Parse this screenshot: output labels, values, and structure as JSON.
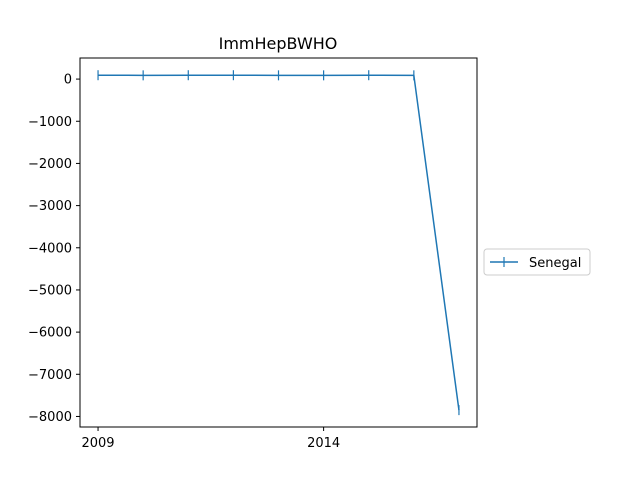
{
  "chart_data": {
    "type": "line",
    "title": "ImmHepBWHO",
    "xlabel": "",
    "ylabel": "",
    "x": [
      2009,
      2010,
      2011,
      2012,
      2013,
      2014,
      2015,
      2016,
      2017
    ],
    "series": [
      {
        "name": "Senegal",
        "values": [
          92,
          89,
          92,
          92,
          89,
          89,
          92,
          89,
          -7850
        ],
        "color": "#1f77b4",
        "marker": "|"
      }
    ],
    "xlim": [
      2008.6,
      2017.4
    ],
    "ylim": [
      -8250,
      500
    ],
    "x_ticks": [
      2009,
      2014
    ],
    "x_tick_labels": [
      "2009",
      "2014"
    ],
    "y_ticks": [
      0,
      -1000,
      -2000,
      -3000,
      -4000,
      -5000,
      -6000,
      -7000,
      -8000
    ],
    "y_tick_labels": [
      "0",
      "−1000",
      "−2000",
      "−3000",
      "−4000",
      "−5000",
      "−6000",
      "−7000",
      "−8000"
    ],
    "grid": false,
    "legend_position": "right-outside"
  }
}
